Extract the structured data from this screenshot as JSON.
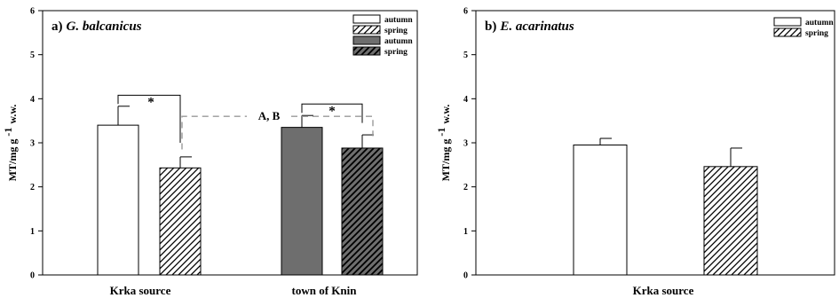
{
  "chart_data": [
    {
      "type": "bar",
      "panel_label": "a)",
      "title": "G. balcanicus",
      "ylabel": "MT/mg g",
      "ylabel_sup": "-1",
      "ylabel_unit": "w.w.",
      "xlabel": "",
      "ylim": [
        0,
        6
      ],
      "yticks": [
        0,
        1,
        2,
        3,
        4,
        5,
        6
      ],
      "grid": false,
      "legend_position": "top-right",
      "categories": [
        "Krka source",
        "town of Knin"
      ],
      "series": [
        {
          "name": "autumn",
          "fill": "#ffffff",
          "hatch": false,
          "category": 0,
          "value": 3.4,
          "error": 0.43
        },
        {
          "name": "spring",
          "fill": "#ffffff",
          "hatch": true,
          "category": 0,
          "value": 2.43,
          "error": 0.25
        },
        {
          "name": "autumn",
          "fill": "#6e6e6e",
          "hatch": false,
          "category": 1,
          "value": 3.35,
          "error": 0.27
        },
        {
          "name": "spring",
          "fill": "#6e6e6e",
          "hatch": true,
          "category": 1,
          "value": 2.88,
          "error": 0.3
        }
      ],
      "annotations": {
        "star": "*",
        "ab": "A, B"
      }
    },
    {
      "type": "bar",
      "panel_label": "b)",
      "title": "E. acarinatus",
      "ylabel": "MT/mg g",
      "ylabel_sup": "-1",
      "ylabel_unit": "w.w.",
      "xlabel": "",
      "ylim": [
        0,
        6
      ],
      "yticks": [
        0,
        1,
        2,
        3,
        4,
        5,
        6
      ],
      "grid": false,
      "legend_position": "top-right",
      "categories": [
        "Krka source"
      ],
      "series": [
        {
          "name": "autumn",
          "fill": "#ffffff",
          "hatch": false,
          "category": 0,
          "value": 2.95,
          "error": 0.15
        },
        {
          "name": "spring",
          "fill": "#ffffff",
          "hatch": true,
          "category": 0,
          "value": 2.46,
          "error": 0.42
        }
      ]
    }
  ]
}
